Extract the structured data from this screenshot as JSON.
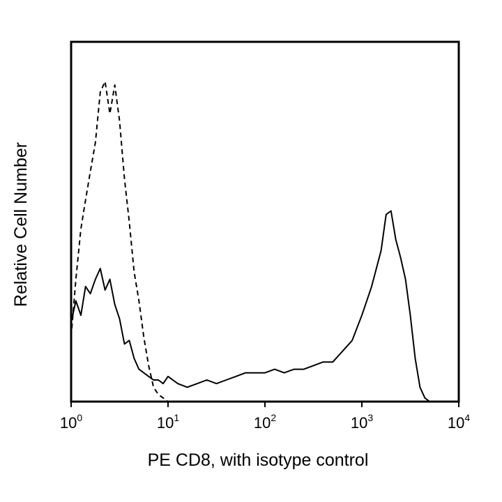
{
  "chart_data": {
    "type": "line",
    "title": "",
    "xlabel": "PE CD8, with isotype control",
    "ylabel": "Relative Cell Number",
    "x_scale": "log",
    "xlim": [
      1,
      10000
    ],
    "ylim": [
      0,
      1
    ],
    "x_tick_labels": [
      {
        "base": "10",
        "exp": "0"
      },
      {
        "base": "10",
        "exp": "1"
      },
      {
        "base": "10",
        "exp": "2"
      },
      {
        "base": "10",
        "exp": "3"
      },
      {
        "base": "10",
        "exp": "4"
      }
    ],
    "y_ticks_shown": false,
    "grid": false,
    "legend": "none",
    "series": [
      {
        "line_style": "solid",
        "points": [
          [
            1.0,
            0.22
          ],
          [
            1.12,
            0.28
          ],
          [
            1.26,
            0.24
          ],
          [
            1.41,
            0.32
          ],
          [
            1.58,
            0.3
          ],
          [
            1.78,
            0.34
          ],
          [
            2.0,
            0.37
          ],
          [
            2.24,
            0.31
          ],
          [
            2.51,
            0.34
          ],
          [
            2.82,
            0.27
          ],
          [
            3.16,
            0.23
          ],
          [
            3.55,
            0.16
          ],
          [
            3.98,
            0.17
          ],
          [
            4.47,
            0.12
          ],
          [
            5.01,
            0.09
          ],
          [
            5.62,
            0.08
          ],
          [
            6.31,
            0.07
          ],
          [
            7.08,
            0.06
          ],
          [
            7.94,
            0.06
          ],
          [
            8.91,
            0.05
          ],
          [
            10.0,
            0.07
          ],
          [
            12.6,
            0.05
          ],
          [
            15.8,
            0.04
          ],
          [
            20.0,
            0.05
          ],
          [
            25.1,
            0.06
          ],
          [
            31.6,
            0.05
          ],
          [
            39.8,
            0.06
          ],
          [
            50.1,
            0.07
          ],
          [
            63.1,
            0.08
          ],
          [
            79.4,
            0.08
          ],
          [
            100,
            0.08
          ],
          [
            126,
            0.09
          ],
          [
            158,
            0.08
          ],
          [
            200,
            0.09
          ],
          [
            251,
            0.09
          ],
          [
            316,
            0.1
          ],
          [
            398,
            0.11
          ],
          [
            501,
            0.11
          ],
          [
            631,
            0.14
          ],
          [
            794,
            0.17
          ],
          [
            1000,
            0.24
          ],
          [
            1260,
            0.32
          ],
          [
            1580,
            0.42
          ],
          [
            1780,
            0.52
          ],
          [
            2000,
            0.53
          ],
          [
            2240,
            0.45
          ],
          [
            2510,
            0.4
          ],
          [
            2820,
            0.34
          ],
          [
            3160,
            0.24
          ],
          [
            3550,
            0.12
          ],
          [
            3980,
            0.04
          ],
          [
            4470,
            0.01
          ],
          [
            5010,
            0.0
          ]
        ]
      },
      {
        "line_style": "dashed",
        "points": [
          [
            1.0,
            0.18
          ],
          [
            1.12,
            0.34
          ],
          [
            1.26,
            0.48
          ],
          [
            1.41,
            0.56
          ],
          [
            1.58,
            0.64
          ],
          [
            1.78,
            0.72
          ],
          [
            2.0,
            0.86
          ],
          [
            2.24,
            0.89
          ],
          [
            2.51,
            0.8
          ],
          [
            2.82,
            0.88
          ],
          [
            3.16,
            0.78
          ],
          [
            3.55,
            0.62
          ],
          [
            3.98,
            0.5
          ],
          [
            4.47,
            0.36
          ],
          [
            5.01,
            0.28
          ],
          [
            5.62,
            0.18
          ],
          [
            6.31,
            0.1
          ],
          [
            7.08,
            0.04
          ],
          [
            7.94,
            0.02
          ],
          [
            8.91,
            0.01
          ],
          [
            10.0,
            0.0
          ]
        ]
      }
    ]
  }
}
